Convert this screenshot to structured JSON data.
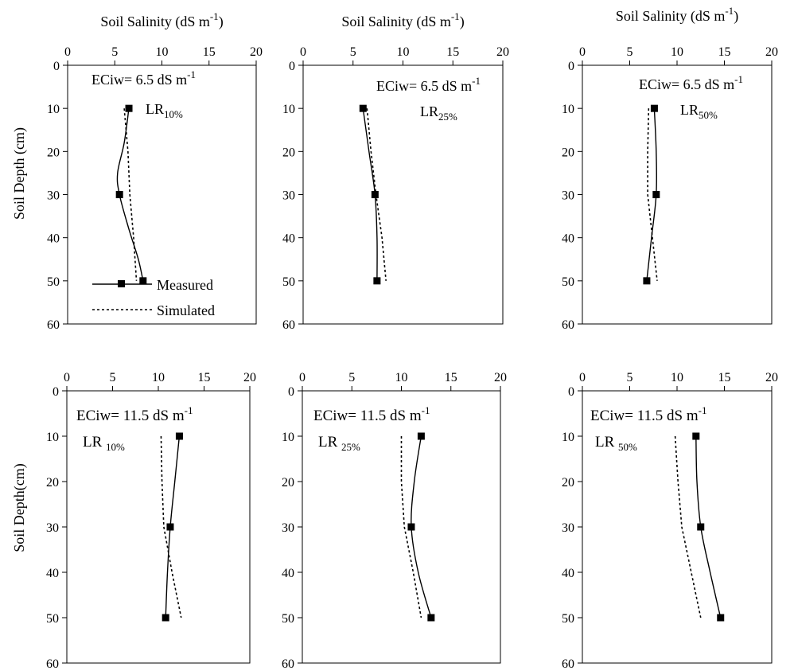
{
  "x_axis_title": "Soil Salinity (dS m",
  "x_axis_title_sup": "-1",
  "x_axis_title_close": ")",
  "y_axis_title_top": "Soil Depth (cm)",
  "y_axis_title_bottom": "Soil Depth(cm)",
  "legend": {
    "measured": "Measured",
    "simulated": "Simulated"
  },
  "chart_data": [
    {
      "type": "line",
      "panel": "top-left",
      "annotation": {
        "prefix": "ECiw= 6.5 dS m",
        "sup": "-1",
        "lr": "LR",
        "lr_sub": "10%"
      },
      "xlabel": "Soil Salinity (dS m-1)",
      "ylabel": "Soil Depth (cm)",
      "xlim": [
        0,
        20
      ],
      "ylim": [
        0,
        60
      ],
      "y_inverted": true,
      "x_ticks": [
        0,
        5,
        10,
        15,
        20
      ],
      "y_ticks": [
        0,
        10,
        20,
        30,
        40,
        50,
        60
      ],
      "series": [
        {
          "name": "Measured",
          "style": "solid-square-markers",
          "points": [
            [
              6.5,
              10
            ],
            [
              5.5,
              30
            ],
            [
              8.0,
              50
            ]
          ],
          "curve": [
            [
              6.5,
              10
            ],
            [
              6.0,
              18
            ],
            [
              5.3,
              25
            ],
            [
              5.5,
              30
            ],
            [
              6.5,
              38
            ],
            [
              7.5,
              45
            ],
            [
              8.0,
              50
            ]
          ]
        },
        {
          "name": "Simulated",
          "style": "dotted",
          "curve": [
            [
              6.0,
              10
            ],
            [
              6.4,
              20
            ],
            [
              6.6,
              30
            ],
            [
              7.0,
              40
            ],
            [
              7.3,
              50
            ]
          ]
        }
      ]
    },
    {
      "type": "line",
      "panel": "top-middle",
      "annotation": {
        "prefix": "ECiw= 6.5 dS m",
        "sup": "-1",
        "lr": "LR",
        "lr_sub": "25%"
      },
      "xlabel": "Soil Salinity (dS m-1)",
      "ylabel": "Soil Depth (cm)",
      "xlim": [
        0,
        20
      ],
      "ylim": [
        0,
        60
      ],
      "y_inverted": true,
      "x_ticks": [
        0,
        5,
        10,
        15,
        20
      ],
      "y_ticks": [
        0,
        10,
        20,
        30,
        40,
        50,
        60
      ],
      "series": [
        {
          "name": "Measured",
          "style": "solid-square-markers",
          "points": [
            [
              6.0,
              10
            ],
            [
              7.2,
              30
            ],
            [
              7.4,
              50
            ]
          ],
          "curve": [
            [
              6.0,
              10
            ],
            [
              6.6,
              20
            ],
            [
              7.2,
              30
            ],
            [
              7.4,
              40
            ],
            [
              7.4,
              50
            ]
          ]
        },
        {
          "name": "Simulated",
          "style": "dotted",
          "curve": [
            [
              6.4,
              10
            ],
            [
              6.8,
              20
            ],
            [
              7.3,
              30
            ],
            [
              7.9,
              40
            ],
            [
              8.3,
              50
            ]
          ]
        }
      ]
    },
    {
      "type": "line",
      "panel": "top-right",
      "annotation": {
        "prefix": "ECiw= 6.5 dS m",
        "sup": "-1",
        "lr": "LR",
        "lr_sub": "50%"
      },
      "xlabel": "Soil Salinity (dS m-1)",
      "ylabel": "Soil Depth (cm)",
      "xlim": [
        0,
        20
      ],
      "ylim": [
        0,
        60
      ],
      "y_inverted": true,
      "x_ticks": [
        0,
        5,
        10,
        15,
        20
      ],
      "y_ticks": [
        0,
        10,
        20,
        30,
        40,
        50,
        60
      ],
      "series": [
        {
          "name": "Measured",
          "style": "solid-square-markers",
          "points": [
            [
              7.6,
              10
            ],
            [
              7.8,
              30
            ],
            [
              6.8,
              50
            ]
          ],
          "curve": [
            [
              7.6,
              10
            ],
            [
              7.8,
              20
            ],
            [
              7.8,
              30
            ],
            [
              7.3,
              40
            ],
            [
              6.8,
              50
            ]
          ]
        },
        {
          "name": "Simulated",
          "style": "dotted",
          "curve": [
            [
              7.0,
              10
            ],
            [
              6.9,
              20
            ],
            [
              6.9,
              30
            ],
            [
              7.4,
              40
            ],
            [
              7.9,
              50
            ]
          ]
        }
      ]
    },
    {
      "type": "line",
      "panel": "bottom-left",
      "annotation": {
        "prefix": "ECiw= 11.5 dS m",
        "sup": "-1",
        "lr": "LR",
        "lr_sub": "10%"
      },
      "xlabel": "",
      "ylabel": "Soil Depth(cm)",
      "xlim": [
        0,
        20
      ],
      "ylim": [
        0,
        60
      ],
      "y_inverted": true,
      "x_ticks": [
        0,
        5,
        10,
        15,
        20
      ],
      "y_ticks": [
        0,
        10,
        20,
        30,
        40,
        50,
        60
      ],
      "series": [
        {
          "name": "Measured",
          "style": "solid-square-markers",
          "points": [
            [
              12.3,
              10
            ],
            [
              11.3,
              30
            ],
            [
              10.8,
              50
            ]
          ],
          "curve": [
            [
              12.3,
              10
            ],
            [
              11.8,
              20
            ],
            [
              11.3,
              30
            ],
            [
              11.0,
              40
            ],
            [
              10.8,
              50
            ]
          ]
        },
        {
          "name": "Simulated",
          "style": "dotted",
          "curve": [
            [
              10.3,
              10
            ],
            [
              10.4,
              20
            ],
            [
              10.6,
              30
            ],
            [
              11.5,
              40
            ],
            [
              12.5,
              50
            ]
          ]
        }
      ]
    },
    {
      "type": "line",
      "panel": "bottom-middle",
      "annotation": {
        "prefix": "ECiw= 11.5 dS m",
        "sup": "-1",
        "lr": "LR",
        "lr_sub": "25%"
      },
      "xlabel": "",
      "ylabel": "Soil Depth(cm)",
      "xlim": [
        0,
        20
      ],
      "ylim": [
        0,
        60
      ],
      "y_inverted": true,
      "x_ticks": [
        0,
        5,
        10,
        15,
        20
      ],
      "y_ticks": [
        0,
        10,
        20,
        30,
        40,
        50,
        60
      ],
      "series": [
        {
          "name": "Measured",
          "style": "solid-square-markers",
          "points": [
            [
              12.0,
              10
            ],
            [
              11.0,
              30
            ],
            [
              13.0,
              50
            ]
          ],
          "curve": [
            [
              12.0,
              10
            ],
            [
              11.3,
              20
            ],
            [
              11.0,
              30
            ],
            [
              11.7,
              40
            ],
            [
              13.0,
              50
            ]
          ]
        },
        {
          "name": "Simulated",
          "style": "dotted",
          "curve": [
            [
              10.0,
              10
            ],
            [
              10.0,
              20
            ],
            [
              10.3,
              30
            ],
            [
              11.2,
              40
            ],
            [
              12.0,
              50
            ]
          ]
        }
      ]
    },
    {
      "type": "line",
      "panel": "bottom-right",
      "annotation": {
        "prefix": "ECiw= 11.5 dS m",
        "sup": "-1",
        "lr": "LR",
        "lr_sub": "50%"
      },
      "xlabel": "",
      "ylabel": "Soil Depth(cm)",
      "xlim": [
        0,
        20
      ],
      "ylim": [
        0,
        60
      ],
      "y_inverted": true,
      "x_ticks": [
        0,
        5,
        10,
        15,
        20
      ],
      "y_ticks": [
        0,
        10,
        20,
        30,
        40,
        50,
        60
      ],
      "series": [
        {
          "name": "Measured",
          "style": "solid-square-markers",
          "points": [
            [
              12.0,
              10
            ],
            [
              12.5,
              30
            ],
            [
              14.6,
              50
            ]
          ],
          "curve": [
            [
              12.0,
              10
            ],
            [
              12.1,
              20
            ],
            [
              12.5,
              30
            ],
            [
              13.5,
              40
            ],
            [
              14.6,
              50
            ]
          ]
        },
        {
          "name": "Simulated",
          "style": "dotted",
          "curve": [
            [
              9.8,
              10
            ],
            [
              10.1,
              20
            ],
            [
              10.5,
              30
            ],
            [
              11.5,
              40
            ],
            [
              12.5,
              50
            ]
          ]
        }
      ]
    }
  ]
}
